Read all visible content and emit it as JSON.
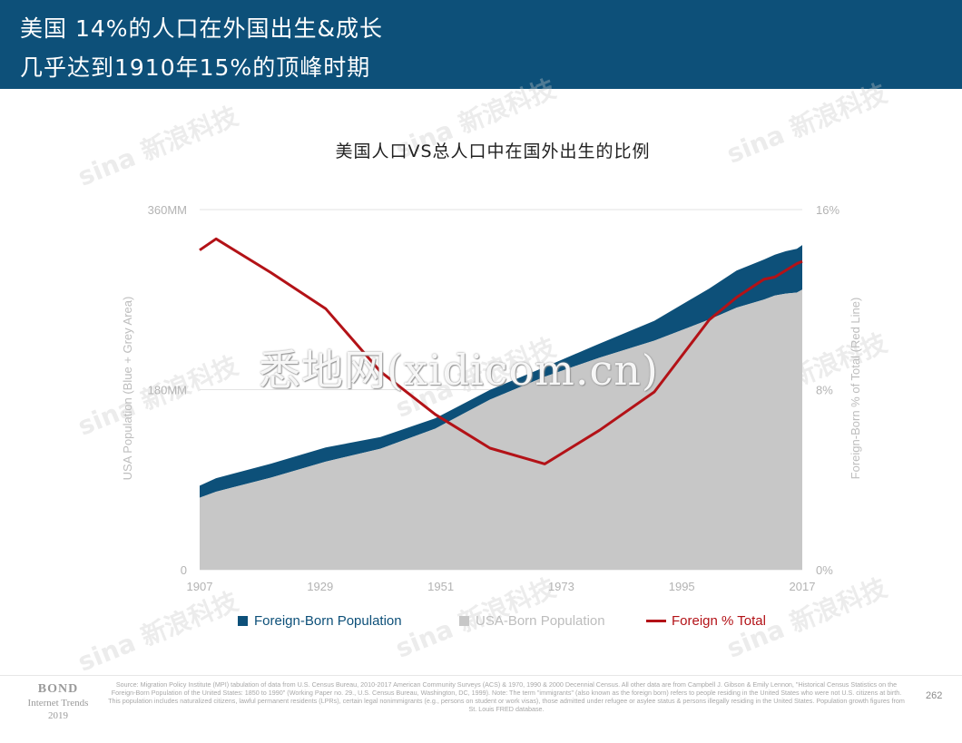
{
  "header": {
    "line1": "美国  14%的人口在外国出生&成长",
    "line2": "几乎达到1910年15%的顶峰时期"
  },
  "chart_data": {
    "type": "area",
    "title": "美国人口VS总人口中在国外出生的比例",
    "x": [
      1907,
      1910,
      1920,
      1930,
      1940,
      1950,
      1960,
      1970,
      1980,
      1990,
      2000,
      2005,
      2010,
      2012,
      2014,
      2016,
      2017
    ],
    "x_ticks": [
      "1907",
      "1929",
      "1951",
      "1973",
      "1995",
      "2017"
    ],
    "y_left_ticks": [
      "0",
      "180MM",
      "360MM"
    ],
    "y_right_ticks": [
      "0%",
      "8%",
      "16%"
    ],
    "ylim_left": [
      0,
      360
    ],
    "ylim_right": [
      0,
      16
    ],
    "ylabel_left": "USA Population (Blue + Grey Area)",
    "ylabel_right": "Foreign-Born % of Total (Red Line)",
    "series": [
      {
        "name": "USA-Born Population",
        "kind": "area",
        "axis": "left",
        "color": "#c7c7c7",
        "values": [
          72,
          78,
          92,
          108,
          121,
          141,
          170,
          193,
          212,
          229,
          250,
          262,
          270,
          274,
          276,
          277,
          280
        ]
      },
      {
        "name": "Foreign-Born Population",
        "kind": "stacked-area",
        "axis": "left",
        "color": "#0d5079",
        "values": [
          12,
          13.5,
          14,
          14.2,
          11.6,
          10.3,
          9.7,
          9.6,
          14.1,
          19.8,
          31,
          37,
          40,
          40.8,
          42.4,
          43.7,
          44.5
        ]
      },
      {
        "name": "Foreign % Total",
        "kind": "line",
        "axis": "right",
        "color": "#b31217",
        "values": [
          14.2,
          14.7,
          13.2,
          11.6,
          8.8,
          6.9,
          5.4,
          4.7,
          6.2,
          7.9,
          11.1,
          12.1,
          12.9,
          13.0,
          13.3,
          13.6,
          13.7
        ]
      }
    ],
    "legend_position": "bottom"
  },
  "watermark": "悉地网(xidicom.cn)",
  "sina_mark": "sina 新浪科技",
  "footer": {
    "bond_title": "BOND",
    "bond_sub1": "Internet Trends",
    "bond_sub2": "2019",
    "source": "Source: Migration Policy Institute (MPI) tabulation of data from U.S. Census Bureau, 2010-2017 American Community Surveys (ACS) & 1970, 1990 & 2000 Decennial Census. All other data are from Campbell J. Gibson & Emily Lennon, \"Historical Census Statistics on the Foreign-Born Population of the United States: 1850 to 1990\" (Working Paper no. 29., U.S. Census Bureau, Washington, DC, 1999). Note: The term \"immigrants\" (also known as the foreign born) refers to people residing in the United States who were not U.S. citizens at birth. This population includes naturalized citizens, lawful permanent residents (LPRs), certain legal nonimmigrants (e.g., persons on student or work visas), those admitted under refugee or asylee status & persons illegally residing in the United States. Population growth figures from St. Louis FRED database.",
    "page": "262"
  }
}
